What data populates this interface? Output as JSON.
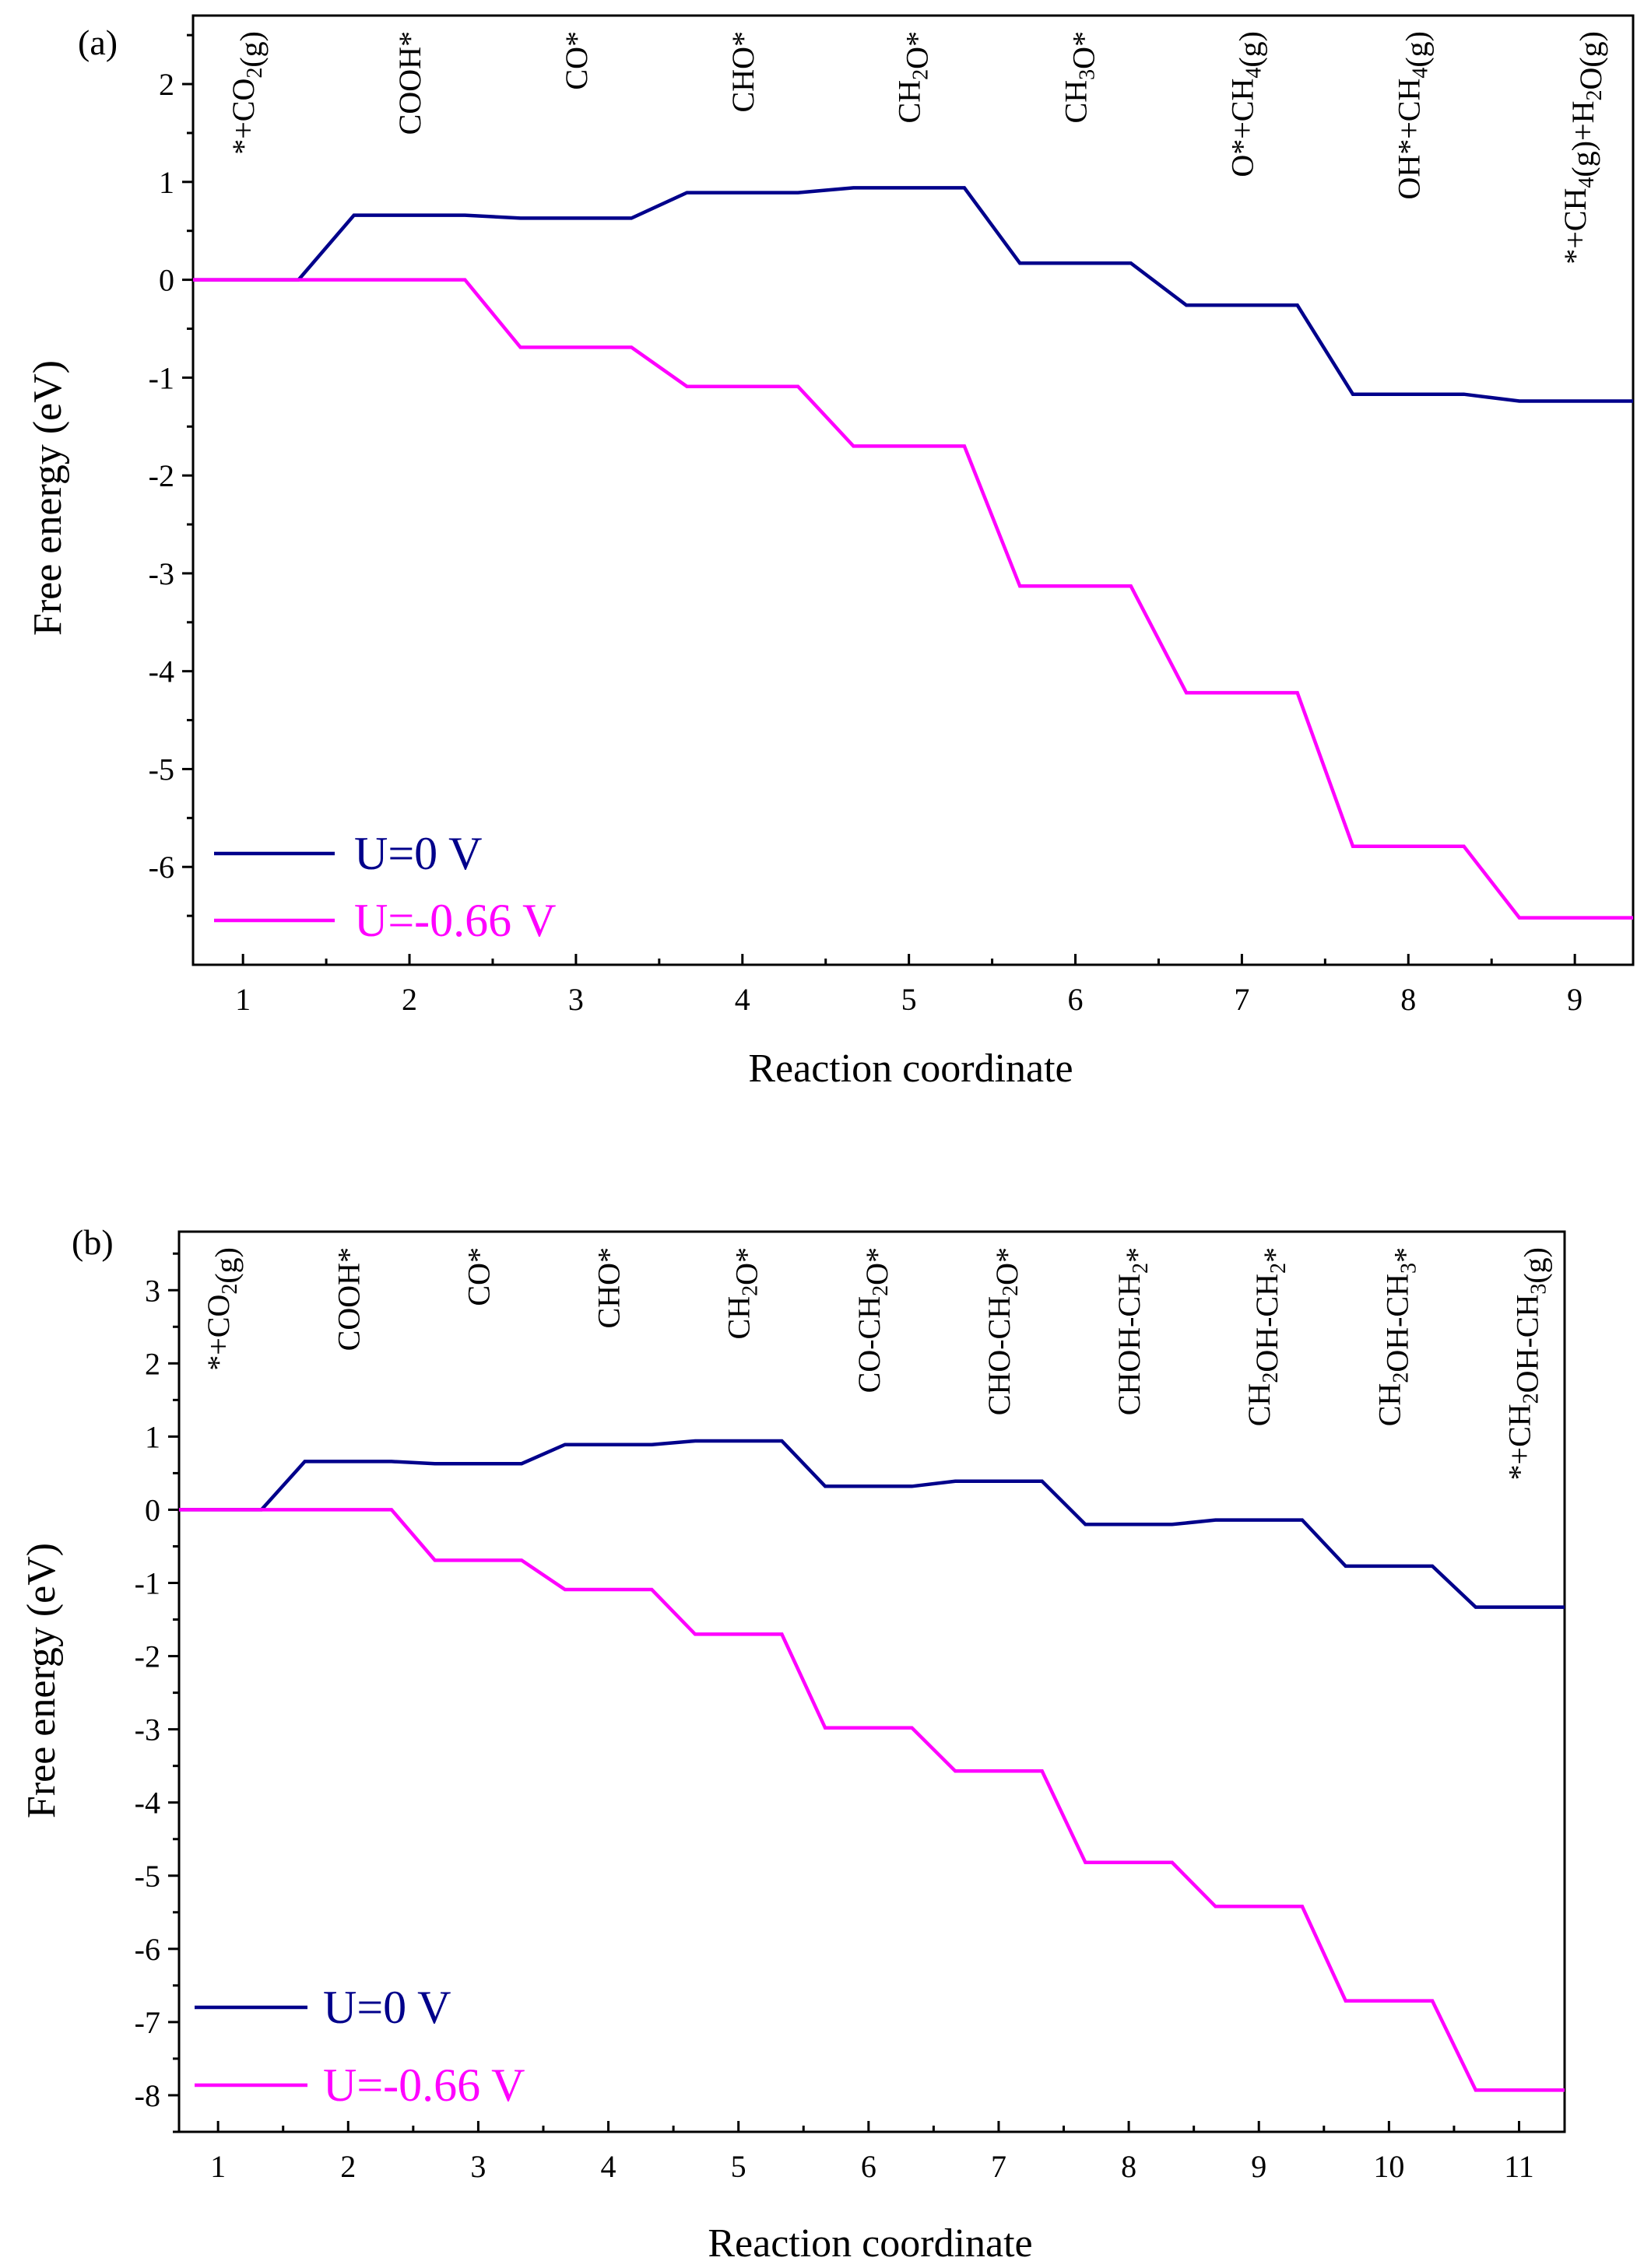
{
  "chart_data": [
    {
      "type": "line",
      "panel_label": "(a)",
      "xlabel": "Reaction coordinate",
      "ylabel": "Free energy (eV)",
      "xlim": [
        0.7,
        9.35
      ],
      "ylim": [
        -7.0,
        2.7
      ],
      "xticks": [
        1,
        2,
        3,
        4,
        5,
        6,
        7,
        8,
        9
      ],
      "yticks": [
        2,
        1,
        0,
        -1,
        -2,
        -3,
        -4,
        -5,
        -6
      ],
      "species": [
        {
          "pre": "*+CO",
          "sub": "2",
          "post": "(g)"
        },
        {
          "pre": "COOH*"
        },
        {
          "pre": "CO*"
        },
        {
          "pre": "CHO*"
        },
        {
          "pre": "CH",
          "sub": "2",
          "post": "O*"
        },
        {
          "pre": "CH",
          "sub": "3",
          "post": "O*"
        },
        {
          "pre": "O*+CH",
          "sub": "4",
          "post": "(g)"
        },
        {
          "pre": "OH*+CH",
          "sub": "4",
          "post": "(g)"
        },
        {
          "pre": "*+CH",
          "sub": "4",
          "post": "(g)+H",
          "sub2": "2",
          "post2": "O(g)"
        }
      ],
      "series": [
        {
          "name": "U=0 V",
          "color": "#00008B",
          "values": [
            0.0,
            0.66,
            0.63,
            0.89,
            0.94,
            0.17,
            -0.26,
            -1.17,
            -1.24
          ]
        },
        {
          "name": "U=-0.66 V",
          "color": "#FF00FF",
          "values": [
            0.0,
            0.0,
            -0.69,
            -1.09,
            -1.7,
            -3.13,
            -4.22,
            -5.79,
            -6.52
          ]
        }
      ],
      "legend_position": "bottom-left"
    },
    {
      "type": "line",
      "panel_label": "(b)",
      "xlabel": "Reaction coordinate",
      "ylabel": "Free energy (eV)",
      "xlim": [
        0.7,
        11.35
      ],
      "ylim": [
        -8.5,
        3.8
      ],
      "xticks": [
        1,
        2,
        3,
        4,
        5,
        6,
        7,
        8,
        9,
        10,
        11
      ],
      "yticks": [
        3,
        2,
        1,
        0,
        -1,
        -2,
        -3,
        -4,
        -5,
        -6,
        -7,
        -8
      ],
      "species": [
        {
          "pre": "*+CO",
          "sub": "2",
          "post": "(g)"
        },
        {
          "pre": "COOH*"
        },
        {
          "pre": "CO*"
        },
        {
          "pre": "CHO*"
        },
        {
          "pre": "CH",
          "sub": "2",
          "post": "O*"
        },
        {
          "pre": "CO-CH",
          "sub": "2",
          "post": "O*"
        },
        {
          "pre": "CHO-CH",
          "sub": "2",
          "post": "O*"
        },
        {
          "pre": "CHOH-CH",
          "sub": "2",
          "post": "*"
        },
        {
          "pre": "CH",
          "sub": "2",
          "post": "OH-CH",
          "sub2": "2",
          "post2": "*"
        },
        {
          "pre": "CH",
          "sub": "2",
          "post": "OH-CH",
          "sub2": "3",
          "post2": "*"
        },
        {
          "pre": "*+CH",
          "sub": "2",
          "post": "OH-CH",
          "sub2": "3",
          "post2": "(g)"
        }
      ],
      "series": [
        {
          "name": "U=0 V",
          "color": "#00008B",
          "values": [
            0.0,
            0.66,
            0.63,
            0.89,
            0.94,
            0.32,
            0.39,
            -0.2,
            -0.14,
            -0.77,
            -1.33
          ]
        },
        {
          "name": "U=-0.66 V",
          "color": "#FF00FF",
          "values": [
            0.0,
            0.0,
            -0.69,
            -1.09,
            -1.7,
            -2.98,
            -3.57,
            -4.82,
            -5.42,
            -6.71,
            -7.93
          ]
        }
      ],
      "legend_position": "bottom-left"
    }
  ]
}
